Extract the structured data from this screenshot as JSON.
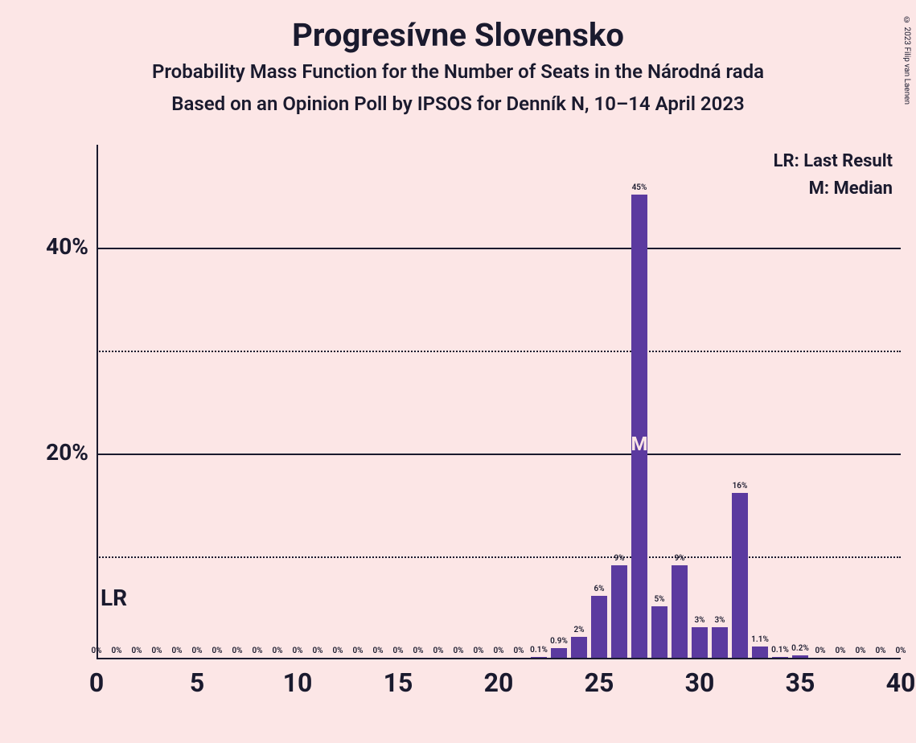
{
  "title": "Progresívne Slovensko",
  "subtitle1": "Probability Mass Function for the Number of Seats in the Národná rada",
  "subtitle2": "Based on an Opinion Poll by IPSOS for Denník N, 10–14 April 2023",
  "copyright": "© 2023 Filip van Laenen",
  "legend": {
    "lr": "LR: Last Result",
    "m": "M: Median"
  },
  "lr_label": "LR",
  "median_marker": "M",
  "chart": {
    "type": "bar",
    "background_color": "#fce6e6",
    "bar_color": "#5b3a9f",
    "text_color": "#1a1a2e",
    "title_fontsize": 40,
    "subtitle_fontsize": 24,
    "legend_fontsize": 22,
    "ytick_fontsize": 28,
    "xtick_fontsize": 32,
    "lr_fontsize": 28,
    "bar_label_fontsize": 10,
    "ylim": [
      0,
      50
    ],
    "xlim": [
      0,
      40
    ],
    "y_ticks": [
      20,
      40
    ],
    "y_dotted": [
      10,
      30
    ],
    "x_ticks": [
      0,
      5,
      10,
      15,
      20,
      25,
      30,
      35,
      40
    ],
    "bar_width_ratio": 0.8,
    "median_seat": 27,
    "lr_seat": 0,
    "data": [
      {
        "x": 0,
        "v": 0,
        "label": "0%"
      },
      {
        "x": 1,
        "v": 0,
        "label": "0%"
      },
      {
        "x": 2,
        "v": 0,
        "label": "0%"
      },
      {
        "x": 3,
        "v": 0,
        "label": "0%"
      },
      {
        "x": 4,
        "v": 0,
        "label": "0%"
      },
      {
        "x": 5,
        "v": 0,
        "label": "0%"
      },
      {
        "x": 6,
        "v": 0,
        "label": "0%"
      },
      {
        "x": 7,
        "v": 0,
        "label": "0%"
      },
      {
        "x": 8,
        "v": 0,
        "label": "0%"
      },
      {
        "x": 9,
        "v": 0,
        "label": "0%"
      },
      {
        "x": 10,
        "v": 0,
        "label": "0%"
      },
      {
        "x": 11,
        "v": 0,
        "label": "0%"
      },
      {
        "x": 12,
        "v": 0,
        "label": "0%"
      },
      {
        "x": 13,
        "v": 0,
        "label": "0%"
      },
      {
        "x": 14,
        "v": 0,
        "label": "0%"
      },
      {
        "x": 15,
        "v": 0,
        "label": "0%"
      },
      {
        "x": 16,
        "v": 0,
        "label": "0%"
      },
      {
        "x": 17,
        "v": 0,
        "label": "0%"
      },
      {
        "x": 18,
        "v": 0,
        "label": "0%"
      },
      {
        "x": 19,
        "v": 0,
        "label": "0%"
      },
      {
        "x": 20,
        "v": 0,
        "label": "0%"
      },
      {
        "x": 21,
        "v": 0,
        "label": "0%"
      },
      {
        "x": 22,
        "v": 0.1,
        "label": "0.1%"
      },
      {
        "x": 23,
        "v": 0.9,
        "label": "0.9%"
      },
      {
        "x": 24,
        "v": 2,
        "label": "2%"
      },
      {
        "x": 25,
        "v": 6,
        "label": "6%"
      },
      {
        "x": 26,
        "v": 9,
        "label": "9%"
      },
      {
        "x": 27,
        "v": 45,
        "label": "45%"
      },
      {
        "x": 28,
        "v": 5,
        "label": "5%"
      },
      {
        "x": 29,
        "v": 9,
        "label": "9%"
      },
      {
        "x": 30,
        "v": 3,
        "label": "3%"
      },
      {
        "x": 31,
        "v": 3,
        "label": "3%"
      },
      {
        "x": 32,
        "v": 16,
        "label": "16%"
      },
      {
        "x": 33,
        "v": 1.1,
        "label": "1.1%"
      },
      {
        "x": 34,
        "v": 0.1,
        "label": "0.1%"
      },
      {
        "x": 35,
        "v": 0.2,
        "label": "0.2%"
      },
      {
        "x": 36,
        "v": 0,
        "label": "0%"
      },
      {
        "x": 37,
        "v": 0,
        "label": "0%"
      },
      {
        "x": 38,
        "v": 0,
        "label": "0%"
      },
      {
        "x": 39,
        "v": 0,
        "label": "0%"
      },
      {
        "x": 40,
        "v": 0,
        "label": "0%"
      }
    ]
  }
}
